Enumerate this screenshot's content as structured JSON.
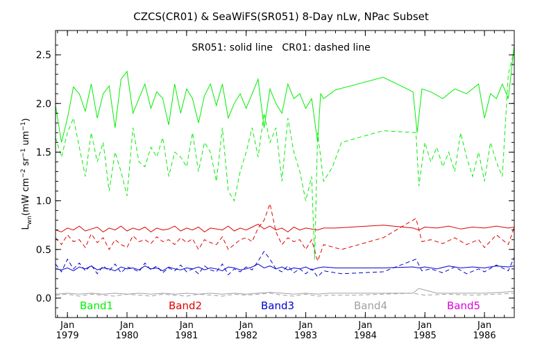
{
  "chart_data": {
    "type": "line",
    "title": "CZCS(CR01) & SeaWiFS(SR051) 8-Day nLw, NPac Subset",
    "subtitle": "SR051: solid line   CR01: dashed line",
    "ylabel": {
      "main": "L",
      "sub": "wn",
      "units": "(mW cm",
      "exp1": "−2",
      "sr": " sr",
      "exp2": "−1",
      "um": " um",
      "exp3": "−1",
      "close": ")"
    },
    "xlim": [
      1978.8,
      1986.5
    ],
    "ylim": [
      -0.2,
      2.75
    ],
    "y_ticks": [
      0.0,
      0.5,
      1.0,
      1.5,
      2.0,
      2.5
    ],
    "y_tick_labels": [
      "0.0",
      "0.5",
      "1.0",
      "1.5",
      "2.0",
      "2.5"
    ],
    "x_ticks": [
      {
        "x": 1979.0,
        "month": "Jan",
        "year": "1979"
      },
      {
        "x": 1980.0,
        "month": "Jan",
        "year": "1980"
      },
      {
        "x": 1981.0,
        "month": "Jan",
        "year": "1981"
      },
      {
        "x": 1982.0,
        "month": "Jan",
        "year": "1982"
      },
      {
        "x": 1983.0,
        "month": "Jan",
        "year": "1983"
      },
      {
        "x": 1984.0,
        "month": "Jan",
        "year": "1984"
      },
      {
        "x": 1985.0,
        "month": "Jan",
        "year": "1985"
      },
      {
        "x": 1986.0,
        "month": "Jan",
        "year": "1986"
      }
    ],
    "legend": [
      {
        "label": "Band1",
        "color": "#00ee00"
      },
      {
        "label": "Band2",
        "color": "#dd0000"
      },
      {
        "label": "Band3",
        "color": "#0000cc"
      },
      {
        "label": "Band4",
        "color": "#a0a0a0"
      },
      {
        "label": "Band5",
        "color": "#dd00dd"
      }
    ],
    "series": [
      {
        "band": "Band1",
        "style": "solid",
        "color": "#00ee00",
        "x": [
          1978.8,
          1978.9,
          1979.0,
          1979.1,
          1979.2,
          1979.3,
          1979.4,
          1979.5,
          1979.6,
          1979.7,
          1979.8,
          1979.9,
          1980.0,
          1980.1,
          1980.2,
          1980.3,
          1980.4,
          1980.5,
          1980.6,
          1980.7,
          1980.8,
          1980.9,
          1981.0,
          1981.1,
          1981.2,
          1981.3,
          1981.4,
          1981.5,
          1981.6,
          1981.7,
          1981.8,
          1981.9,
          1982.0,
          1982.1,
          1982.2,
          1982.3,
          1982.4,
          1982.5,
          1982.6,
          1982.7,
          1982.8,
          1982.9,
          1983.0,
          1983.1,
          1983.2,
          1983.25,
          1983.3,
          1983.5,
          1984.3,
          1984.8,
          1984.87,
          1984.95,
          1985.1,
          1985.3,
          1985.5,
          1985.7,
          1985.9,
          1986.0,
          1986.1,
          1986.2,
          1986.3,
          1986.4,
          1986.5
        ],
        "y": [
          1.98,
          1.6,
          1.85,
          2.17,
          2.1,
          1.92,
          2.2,
          1.85,
          2.1,
          2.18,
          1.75,
          2.25,
          2.33,
          1.9,
          2.05,
          2.2,
          1.95,
          2.12,
          2.05,
          1.78,
          2.2,
          1.9,
          2.15,
          2.05,
          1.8,
          2.08,
          2.2,
          1.98,
          2.2,
          1.85,
          2.0,
          2.1,
          1.95,
          2.1,
          2.25,
          1.75,
          2.15,
          2.0,
          1.9,
          2.2,
          2.05,
          2.1,
          1.95,
          2.05,
          1.6,
          2.1,
          2.05,
          2.14,
          2.27,
          2.12,
          1.7,
          2.15,
          2.12,
          2.05,
          2.15,
          2.1,
          2.2,
          1.85,
          2.1,
          2.05,
          2.2,
          2.05,
          2.6
        ]
      },
      {
        "band": "Band1",
        "style": "dashed",
        "color": "#00ee00",
        "x": [
          1978.8,
          1978.9,
          1979.0,
          1979.1,
          1979.2,
          1979.3,
          1979.4,
          1979.5,
          1979.6,
          1979.7,
          1979.8,
          1979.9,
          1980.0,
          1980.1,
          1980.2,
          1980.3,
          1980.4,
          1980.5,
          1980.6,
          1980.7,
          1980.8,
          1980.9,
          1981.0,
          1981.1,
          1981.2,
          1981.3,
          1981.4,
          1981.5,
          1981.6,
          1981.7,
          1981.8,
          1981.9,
          1982.0,
          1982.1,
          1982.2,
          1982.3,
          1982.4,
          1982.5,
          1982.6,
          1982.7,
          1982.8,
          1982.9,
          1983.0,
          1983.1,
          1983.15,
          1983.2,
          1983.3,
          1983.45,
          1983.6,
          1984.3,
          1984.85,
          1984.9,
          1985.0,
          1985.1,
          1985.2,
          1985.3,
          1985.4,
          1985.5,
          1985.6,
          1985.7,
          1985.8,
          1985.9,
          1986.0,
          1986.1,
          1986.2,
          1986.3,
          1986.4,
          1986.5
        ],
        "y": [
          1.65,
          1.45,
          1.7,
          1.85,
          1.55,
          1.25,
          1.7,
          1.4,
          1.6,
          1.1,
          1.5,
          1.3,
          1.05,
          1.75,
          1.4,
          1.35,
          1.55,
          1.45,
          1.65,
          1.25,
          1.5,
          1.45,
          1.35,
          1.7,
          1.3,
          1.6,
          1.5,
          1.2,
          1.75,
          1.1,
          1.0,
          1.3,
          1.5,
          1.75,
          1.45,
          1.9,
          1.6,
          1.75,
          1.2,
          1.85,
          1.5,
          1.3,
          1.0,
          1.25,
          0.4,
          1.7,
          1.2,
          1.35,
          1.6,
          1.72,
          1.7,
          1.15,
          1.6,
          1.4,
          1.55,
          1.35,
          1.5,
          1.3,
          1.7,
          1.45,
          1.25,
          1.5,
          1.2,
          1.6,
          1.4,
          1.25,
          2.3,
          2.55
        ]
      },
      {
        "band": "Band2",
        "style": "solid",
        "color": "#dd0000",
        "x": [
          1978.8,
          1978.9,
          1979.0,
          1979.1,
          1979.2,
          1979.3,
          1979.4,
          1979.5,
          1979.6,
          1979.7,
          1979.8,
          1979.9,
          1980.0,
          1980.1,
          1980.2,
          1980.3,
          1980.4,
          1980.5,
          1980.6,
          1980.7,
          1980.8,
          1980.9,
          1981.0,
          1981.1,
          1981.2,
          1981.3,
          1981.4,
          1981.5,
          1981.6,
          1981.7,
          1981.8,
          1981.9,
          1982.0,
          1982.1,
          1982.2,
          1982.3,
          1982.4,
          1982.5,
          1982.6,
          1982.7,
          1982.8,
          1982.9,
          1983.0,
          1983.1,
          1983.2,
          1983.3,
          1983.5,
          1984.3,
          1984.8,
          1984.9,
          1985.0,
          1985.2,
          1985.4,
          1985.6,
          1985.8,
          1986.0,
          1986.2,
          1986.4,
          1986.5
        ],
        "y": [
          0.7,
          0.68,
          0.72,
          0.7,
          0.74,
          0.69,
          0.71,
          0.73,
          0.68,
          0.72,
          0.7,
          0.74,
          0.69,
          0.72,
          0.7,
          0.73,
          0.68,
          0.72,
          0.7,
          0.71,
          0.74,
          0.69,
          0.72,
          0.7,
          0.73,
          0.68,
          0.72,
          0.71,
          0.7,
          0.74,
          0.69,
          0.72,
          0.7,
          0.73,
          0.76,
          0.71,
          0.74,
          0.7,
          0.72,
          0.68,
          0.73,
          0.7,
          0.72,
          0.71,
          0.7,
          0.72,
          0.72,
          0.75,
          0.72,
          0.7,
          0.73,
          0.72,
          0.74,
          0.71,
          0.73,
          0.72,
          0.74,
          0.72,
          0.73
        ]
      },
      {
        "band": "Band2",
        "style": "dashed",
        "color": "#dd0000",
        "x": [
          1978.8,
          1978.9,
          1979.0,
          1979.1,
          1979.2,
          1979.3,
          1979.4,
          1979.5,
          1979.6,
          1979.7,
          1979.8,
          1979.9,
          1980.0,
          1980.1,
          1980.2,
          1980.3,
          1980.4,
          1980.5,
          1980.6,
          1980.7,
          1980.8,
          1980.9,
          1981.0,
          1981.1,
          1981.2,
          1981.3,
          1981.4,
          1981.5,
          1981.6,
          1981.7,
          1981.8,
          1981.9,
          1982.0,
          1982.1,
          1982.2,
          1982.3,
          1982.4,
          1982.5,
          1982.6,
          1982.7,
          1982.8,
          1982.9,
          1983.0,
          1983.1,
          1983.2,
          1983.3,
          1983.6,
          1984.3,
          1984.85,
          1984.95,
          1985.1,
          1985.3,
          1985.5,
          1985.7,
          1985.9,
          1986.0,
          1986.2,
          1986.4,
          1986.5
        ],
        "y": [
          0.62,
          0.55,
          0.65,
          0.58,
          0.6,
          0.52,
          0.66,
          0.57,
          0.62,
          0.5,
          0.6,
          0.55,
          0.52,
          0.64,
          0.58,
          0.6,
          0.56,
          0.63,
          0.58,
          0.6,
          0.55,
          0.62,
          0.57,
          0.61,
          0.5,
          0.6,
          0.57,
          0.55,
          0.63,
          0.5,
          0.55,
          0.6,
          0.62,
          0.58,
          0.72,
          0.8,
          0.97,
          0.68,
          0.55,
          0.62,
          0.58,
          0.6,
          0.5,
          0.6,
          0.38,
          0.55,
          0.5,
          0.62,
          0.82,
          0.58,
          0.6,
          0.56,
          0.62,
          0.55,
          0.6,
          0.52,
          0.65,
          0.55,
          0.73
        ]
      },
      {
        "band": "Band3",
        "style": "solid",
        "color": "#0000cc",
        "x": [
          1978.8,
          1978.9,
          1979.0,
          1979.1,
          1979.2,
          1979.3,
          1979.4,
          1979.5,
          1979.6,
          1979.7,
          1979.8,
          1979.9,
          1980.0,
          1980.1,
          1980.2,
          1980.3,
          1980.4,
          1980.5,
          1980.6,
          1980.7,
          1980.8,
          1980.9,
          1981.0,
          1981.1,
          1981.2,
          1981.3,
          1981.4,
          1981.5,
          1981.6,
          1981.7,
          1981.8,
          1981.9,
          1982.0,
          1982.1,
          1982.2,
          1982.3,
          1982.4,
          1982.5,
          1982.6,
          1982.7,
          1982.8,
          1982.9,
          1983.0,
          1983.1,
          1983.2,
          1983.3,
          1983.5,
          1984.3,
          1984.8,
          1984.9,
          1985.0,
          1985.2,
          1985.4,
          1985.6,
          1985.8,
          1986.0,
          1986.2,
          1986.4,
          1986.5
        ],
        "y": [
          0.3,
          0.29,
          0.31,
          0.28,
          0.32,
          0.3,
          0.33,
          0.29,
          0.31,
          0.3,
          0.28,
          0.32,
          0.3,
          0.31,
          0.29,
          0.33,
          0.3,
          0.31,
          0.28,
          0.32,
          0.3,
          0.29,
          0.31,
          0.3,
          0.32,
          0.29,
          0.31,
          0.3,
          0.28,
          0.32,
          0.31,
          0.29,
          0.3,
          0.32,
          0.35,
          0.31,
          0.33,
          0.3,
          0.32,
          0.29,
          0.31,
          0.3,
          0.32,
          0.29,
          0.31,
          0.32,
          0.31,
          0.31,
          0.32,
          0.31,
          0.32,
          0.3,
          0.33,
          0.31,
          0.32,
          0.31,
          0.33,
          0.32,
          0.33
        ]
      },
      {
        "band": "Band3",
        "style": "dashed",
        "color": "#0000cc",
        "x": [
          1978.8,
          1978.9,
          1979.0,
          1979.1,
          1979.2,
          1979.3,
          1979.4,
          1979.5,
          1979.6,
          1979.7,
          1979.8,
          1979.9,
          1980.0,
          1980.1,
          1980.2,
          1980.3,
          1980.4,
          1980.5,
          1980.6,
          1980.7,
          1980.8,
          1980.9,
          1981.0,
          1981.1,
          1981.2,
          1981.3,
          1981.4,
          1981.5,
          1981.6,
          1981.7,
          1981.8,
          1981.9,
          1982.0,
          1982.1,
          1982.2,
          1982.3,
          1982.4,
          1982.5,
          1982.6,
          1982.7,
          1982.8,
          1982.9,
          1983.0,
          1983.1,
          1983.2,
          1983.3,
          1983.6,
          1984.3,
          1984.85,
          1984.95,
          1985.1,
          1985.3,
          1985.5,
          1985.7,
          1985.9,
          1986.0,
          1986.2,
          1986.4,
          1986.5
        ],
        "y": [
          0.35,
          0.27,
          0.4,
          0.3,
          0.36,
          0.28,
          0.34,
          0.25,
          0.33,
          0.28,
          0.35,
          0.26,
          0.32,
          0.3,
          0.27,
          0.36,
          0.29,
          0.33,
          0.26,
          0.31,
          0.28,
          0.34,
          0.27,
          0.3,
          0.25,
          0.33,
          0.29,
          0.27,
          0.35,
          0.24,
          0.3,
          0.27,
          0.32,
          0.29,
          0.38,
          0.48,
          0.4,
          0.3,
          0.27,
          0.33,
          0.26,
          0.3,
          0.25,
          0.3,
          0.22,
          0.28,
          0.25,
          0.27,
          0.4,
          0.28,
          0.3,
          0.26,
          0.32,
          0.25,
          0.3,
          0.27,
          0.34,
          0.28,
          0.42
        ]
      },
      {
        "band": "Band4",
        "style": "solid",
        "color": "#a0a0a0",
        "x": [
          1978.8,
          1979.0,
          1979.2,
          1979.4,
          1979.6,
          1979.8,
          1980.0,
          1980.2,
          1980.4,
          1980.6,
          1980.8,
          1981.0,
          1981.2,
          1981.4,
          1981.6,
          1981.8,
          1982.0,
          1982.2,
          1982.4,
          1982.6,
          1982.8,
          1983.0,
          1983.2,
          1983.4,
          1983.8,
          1984.3,
          1984.8,
          1984.9,
          1985.2,
          1985.6,
          1986.0,
          1986.3,
          1986.5
        ],
        "y": [
          0.04,
          0.05,
          0.04,
          0.05,
          0.04,
          0.05,
          0.04,
          0.05,
          0.04,
          0.05,
          0.04,
          0.05,
          0.04,
          0.05,
          0.04,
          0.05,
          0.04,
          0.05,
          0.06,
          0.05,
          0.04,
          0.05,
          0.04,
          0.05,
          0.05,
          0.05,
          0.05,
          0.1,
          0.05,
          0.05,
          0.05,
          0.06,
          0.07
        ]
      },
      {
        "band": "Band4",
        "style": "dashed",
        "color": "#a0a0a0",
        "x": [
          1978.8,
          1979.0,
          1979.2,
          1979.4,
          1979.6,
          1979.8,
          1980.0,
          1980.2,
          1980.4,
          1980.6,
          1980.8,
          1981.0,
          1981.2,
          1981.4,
          1981.6,
          1981.8,
          1982.0,
          1982.2,
          1982.4,
          1982.6,
          1982.8,
          1983.0,
          1983.2,
          1983.4,
          1983.8,
          1984.3,
          1984.8,
          1985.0,
          1985.4,
          1985.8,
          1986.2,
          1986.5
        ],
        "y": [
          0.03,
          0.04,
          0.02,
          0.04,
          0.03,
          0.02,
          0.04,
          0.03,
          0.02,
          0.04,
          0.03,
          0.02,
          0.04,
          0.03,
          0.02,
          0.04,
          0.03,
          0.04,
          0.05,
          0.03,
          0.02,
          0.04,
          0.02,
          0.03,
          0.03,
          0.04,
          0.05,
          0.03,
          0.04,
          0.03,
          0.04,
          0.05
        ]
      }
    ]
  }
}
